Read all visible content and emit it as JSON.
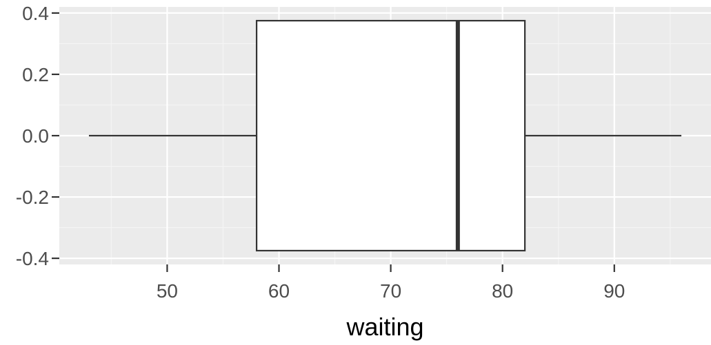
{
  "chart_data": {
    "type": "boxplot",
    "title": "",
    "xlabel": "waiting",
    "ylabel": "",
    "xlim": [
      40.35,
      98.65
    ],
    "ylim": [
      -0.42,
      0.42
    ],
    "x_ticks": [
      50,
      60,
      70,
      80,
      90
    ],
    "x_tick_labels": [
      "50",
      "60",
      "70",
      "80",
      "90"
    ],
    "y_ticks": [
      -0.4,
      -0.2,
      0.0,
      0.2,
      0.4
    ],
    "y_tick_labels": [
      "-0.4",
      "-0.2",
      "0.0",
      "0.2",
      "0.4"
    ],
    "grid": true,
    "box": {
      "min": 43,
      "q1": 58,
      "median": 76,
      "q3": 82,
      "max": 96,
      "y_low": -0.375,
      "y_high": 0.375
    },
    "colors": {
      "panel": "#ebebeb",
      "grid_major": "#ffffff",
      "grid_minor": "#f5f5f5",
      "box_fill": "#ffffff",
      "box_line": "#333333",
      "tick": "#333333"
    }
  }
}
